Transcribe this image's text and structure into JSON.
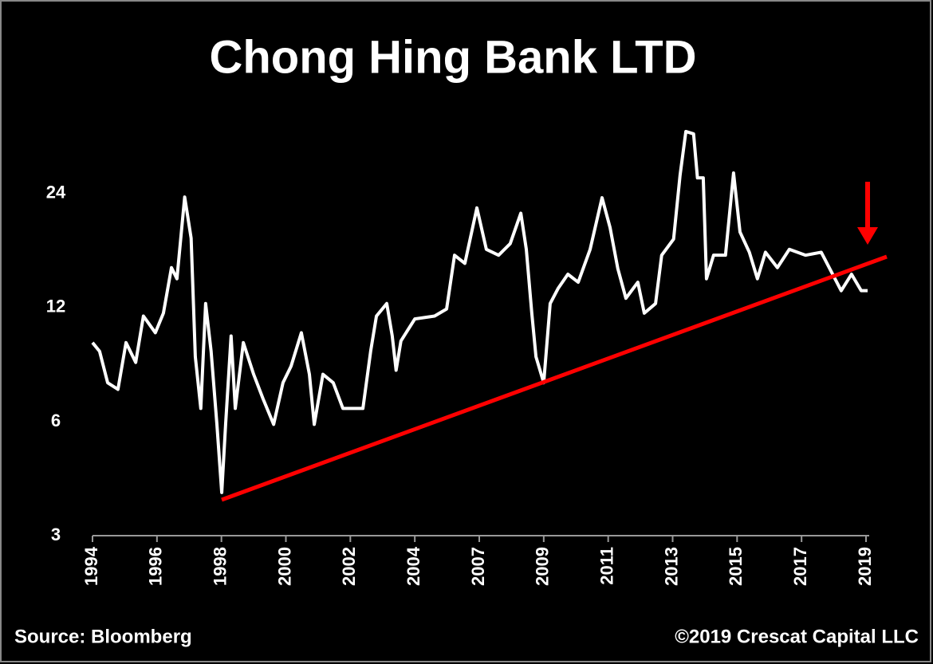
{
  "chart_data": {
    "type": "line",
    "title": "Chong Hing Bank LTD",
    "source": "Source: Bloomberg",
    "credit": "©2019 Crescat Capital LLC",
    "x": [
      1994.0,
      1994.22,
      1994.47,
      1994.79,
      1995.04,
      1995.34,
      1995.58,
      1995.95,
      1996.2,
      1996.45,
      1996.62,
      1996.86,
      1997.06,
      1997.19,
      1997.36,
      1997.51,
      1997.68,
      1997.86,
      1998.01,
      1998.13,
      1998.3,
      1998.43,
      1998.68,
      1999.0,
      1999.29,
      1999.62,
      1999.91,
      2000.16,
      2000.48,
      2000.73,
      2000.88,
      2001.15,
      2001.47,
      2001.77,
      2002.39,
      2002.63,
      2002.81,
      2003.13,
      2003.3,
      2003.42,
      2003.57,
      2004.0,
      2004.92,
      2005.48,
      2005.85,
      2006.33,
      2006.89,
      2007.22,
      2007.6,
      2007.96,
      2008.29,
      2008.46,
      2008.63,
      2008.76,
      2009.0,
      2009.2,
      2009.45,
      2009.75,
      2010.07,
      2010.44,
      2010.81,
      2011.06,
      2011.3,
      2011.55,
      2011.92,
      2012.12,
      2012.47,
      2012.66,
      2013.03,
      2013.23,
      2013.41,
      2013.65,
      2013.77,
      2013.95,
      2014.05,
      2014.27,
      2014.64,
      2014.89,
      2015.09,
      2015.38,
      2015.63,
      2015.88,
      2016.25,
      2016.62,
      2017.12,
      2017.61,
      2017.91,
      2018.23,
      2018.55,
      2018.85,
      2019.05
    ],
    "series": [
      {
        "name": "Chong Hing Bank LTD",
        "color": "#ffffff",
        "values": [
          9.7,
          9.2,
          7.6,
          7.3,
          9.7,
          8.6,
          11.4,
          10.3,
          11.6,
          15.3,
          14.3,
          23.5,
          18.3,
          8.9,
          6.5,
          12.3,
          9.2,
          5.9,
          3.9,
          5.9,
          10.1,
          6.5,
          9.7,
          8.0,
          6.9,
          5.9,
          7.6,
          8.4,
          10.3,
          8.0,
          5.9,
          8.0,
          7.6,
          6.5,
          6.5,
          9.2,
          11.4,
          12.3,
          10.1,
          8.2,
          9.8,
          11.2,
          11.4,
          11.9,
          16.5,
          15.7,
          22.0,
          17.1,
          16.5,
          17.7,
          21.3,
          17.1,
          11.6,
          8.9,
          7.6,
          12.3,
          13.5,
          14.7,
          14.0,
          17.1,
          23.4,
          19.5,
          15.2,
          12.7,
          14.0,
          11.6,
          12.3,
          16.5,
          18.2,
          26.8,
          35,
          34.5,
          26.4,
          26.4,
          14.3,
          16.5,
          16.5,
          27.2,
          19.0,
          16.8,
          14.3,
          16.8,
          15.3,
          17.1,
          16.5,
          16.8,
          15.0,
          13.3,
          14.7,
          13.3,
          13.3
        ]
      }
    ],
    "ylim": [
      3,
      38
    ],
    "yticks": [
      3,
      6,
      12,
      24
    ],
    "log_scale": true,
    "xticks": [
      1994,
      1996,
      1998,
      2000,
      2002,
      2004,
      2007,
      2009,
      2011,
      2013,
      2015,
      2017,
      2019
    ],
    "grid": false
  }
}
